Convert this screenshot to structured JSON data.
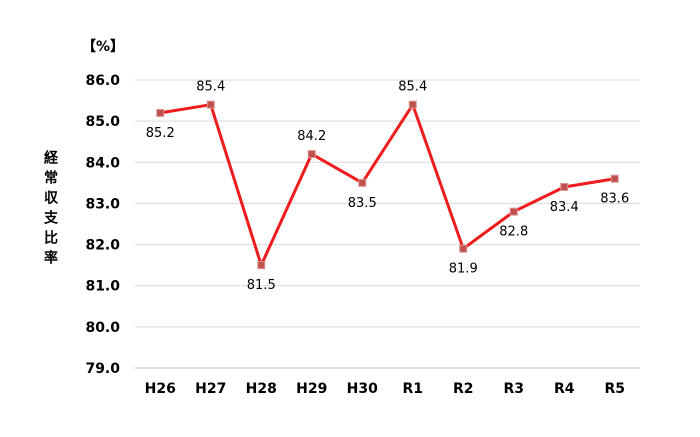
{
  "chart_data": {
    "type": "line",
    "unit": "【%】",
    "ylabel": "経常収支比率",
    "categories": [
      "H26",
      "H27",
      "H28",
      "H29",
      "H30",
      "R1",
      "R2",
      "R3",
      "R4",
      "R5"
    ],
    "series": [
      {
        "values": [
          85.2,
          85.4,
          81.5,
          84.2,
          83.5,
          85.4,
          81.9,
          82.8,
          83.4,
          83.6
        ]
      }
    ],
    "data_labels": [
      "85.2",
      "85.4",
      "81.5",
      "84.2",
      "83.5",
      "85.4",
      "81.9",
      "82.8",
      "83.4",
      "83.6"
    ],
    "label_positions": [
      "below",
      "above",
      "below",
      "above",
      "below",
      "above",
      "below",
      "below",
      "below",
      "below"
    ],
    "ylim": [
      79.0,
      86.0
    ],
    "yticks": [
      "86.0",
      "85.0",
      "84.0",
      "83.0",
      "82.0",
      "81.0",
      "80.0",
      "79.0"
    ],
    "grid": true,
    "colors": {
      "line": "#ee1c1c",
      "marker": "#c0504d",
      "grid": "#d9d9d9"
    }
  }
}
